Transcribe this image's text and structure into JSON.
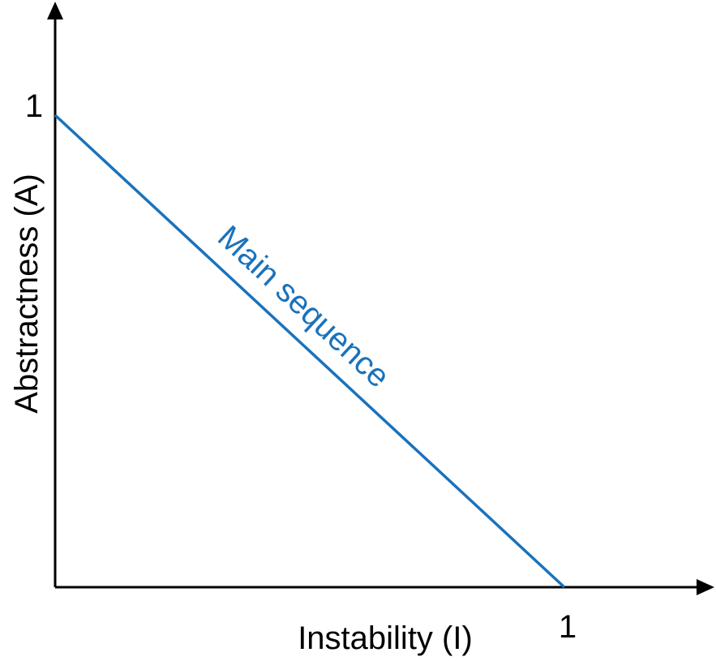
{
  "chart_data": {
    "type": "line",
    "title": "",
    "xlabel": "Instability (I)",
    "ylabel": "Abstractness (A)",
    "xlim": [
      0,
      1.3
    ],
    "ylim": [
      0,
      1.1
    ],
    "x_ticks": [
      {
        "value": 1,
        "label": "1"
      }
    ],
    "y_ticks": [
      {
        "value": 1,
        "label": "1"
      }
    ],
    "grid": false,
    "series": [
      {
        "points": [
          {
            "x": 0,
            "y": 1
          },
          {
            "x": 1,
            "y": 0
          }
        ],
        "color": "#1a72bb"
      }
    ],
    "annotations": [
      {
        "text": "Main sequence",
        "color": "#1a72bb"
      }
    ]
  }
}
